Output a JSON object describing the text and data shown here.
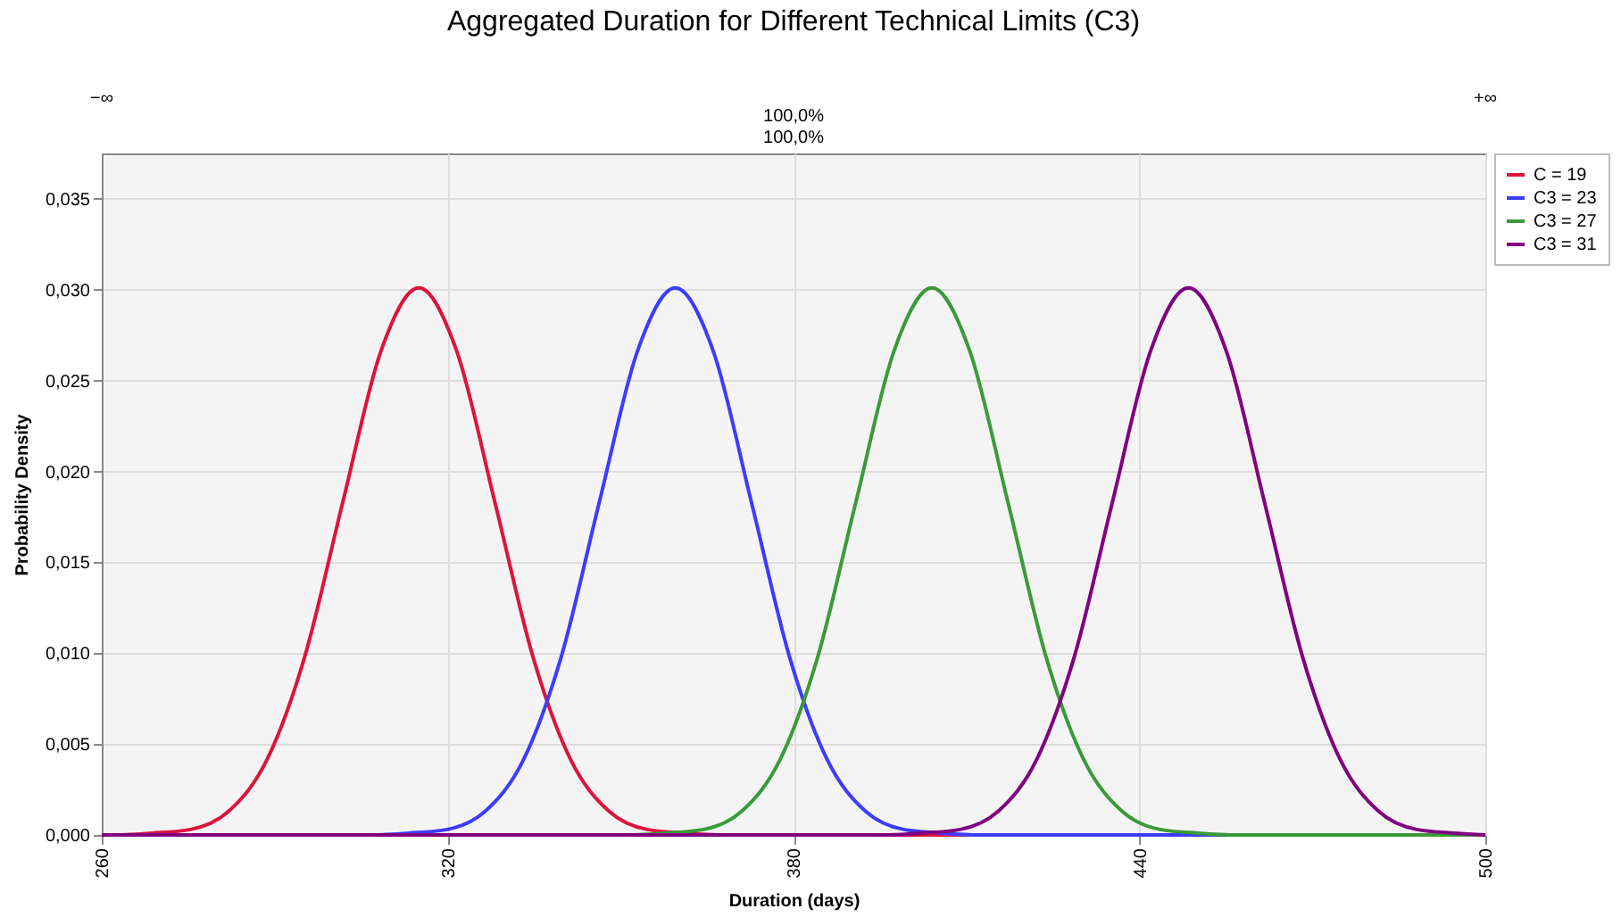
{
  "chart_data": {
    "type": "line",
    "title": "Aggregated Duration for Different Technical Limits (C3)",
    "xlabel": "Duration (days)",
    "ylabel": "Probability Density",
    "xlim": [
      260,
      500
    ],
    "xticks": [
      260,
      320,
      380,
      440,
      500
    ],
    "ylim": [
      0,
      0.0375
    ],
    "yticks": [
      {
        "value": 0,
        "label": "0,000"
      },
      {
        "value": 0.005,
        "label": "0,005"
      },
      {
        "value": 0.01,
        "label": "0,010"
      },
      {
        "value": 0.015,
        "label": "0,015"
      },
      {
        "value": 0.02,
        "label": "0,020"
      },
      {
        "value": 0.025,
        "label": "0,025"
      },
      {
        "value": 0.03,
        "label": "0,030"
      },
      {
        "value": 0.035,
        "label": "0,035"
      }
    ],
    "grid": true,
    "legend": "right",
    "marker": "none",
    "line_style": "solid",
    "annotations": [
      "−∞",
      "+∞",
      "100,0%",
      "100,0%"
    ],
    "series": [
      {
        "name": "C = 19",
        "color": "#dc143c",
        "x": [
          260,
          262.2,
          268.8,
          275.4,
          282,
          288.6,
          295.2,
          301.8,
          308.4,
          315,
          321.6,
          328.2,
          334.8,
          341.4,
          348,
          354.6,
          361.2,
          367.8,
          500
        ],
        "values": [
          0,
          0,
          0.0001,
          0.0003,
          0.0013,
          0.0041,
          0.0098,
          0.0183,
          0.0266,
          0.0301,
          0.0266,
          0.0183,
          0.0098,
          0.0041,
          0.0013,
          0.0003,
          0.0001,
          0,
          0
        ]
      },
      {
        "name": "C3 = 23",
        "color": "#3c3cff",
        "x": [
          260,
          306.7,
          313.3,
          319.9,
          326.5,
          333.1,
          339.7,
          346.3,
          352.9,
          359.5,
          366.1,
          372.7,
          379.3,
          385.9,
          392.5,
          399.1,
          405.7,
          412.3,
          500
        ],
        "values": [
          0,
          0,
          0.0001,
          0.0003,
          0.0013,
          0.0041,
          0.0098,
          0.0183,
          0.0266,
          0.0301,
          0.0266,
          0.0183,
          0.0098,
          0.0041,
          0.0013,
          0.0003,
          0.0001,
          0,
          0
        ]
      },
      {
        "name": "C3 = 27",
        "color": "#3a9a3a",
        "x": [
          260,
          351.2,
          357.8,
          364.4,
          371,
          377.6,
          384.2,
          390.8,
          397.4,
          404,
          410.6,
          417.2,
          423.8,
          430.4,
          437,
          443.6,
          450.2,
          456.8,
          500
        ],
        "values": [
          0,
          0,
          0.0001,
          0.0003,
          0.0013,
          0.0041,
          0.0098,
          0.0183,
          0.0266,
          0.0301,
          0.0266,
          0.0183,
          0.0098,
          0.0041,
          0.0013,
          0.0003,
          0.0001,
          0,
          0
        ]
      },
      {
        "name": "C3 = 31",
        "color": "#800080",
        "x": [
          260,
          395.7,
          402.3,
          408.9,
          415.5,
          422.1,
          428.7,
          435.3,
          441.9,
          448.5,
          455.1,
          461.7,
          468.3,
          474.9,
          481.5,
          488.1,
          494.7,
          500
        ],
        "values": [
          0,
          0,
          0.0001,
          0.0003,
          0.0013,
          0.0041,
          0.0098,
          0.0183,
          0.0266,
          0.0301,
          0.0266,
          0.0183,
          0.0098,
          0.0041,
          0.0013,
          0.0003,
          0.0001,
          0
        ]
      }
    ]
  }
}
